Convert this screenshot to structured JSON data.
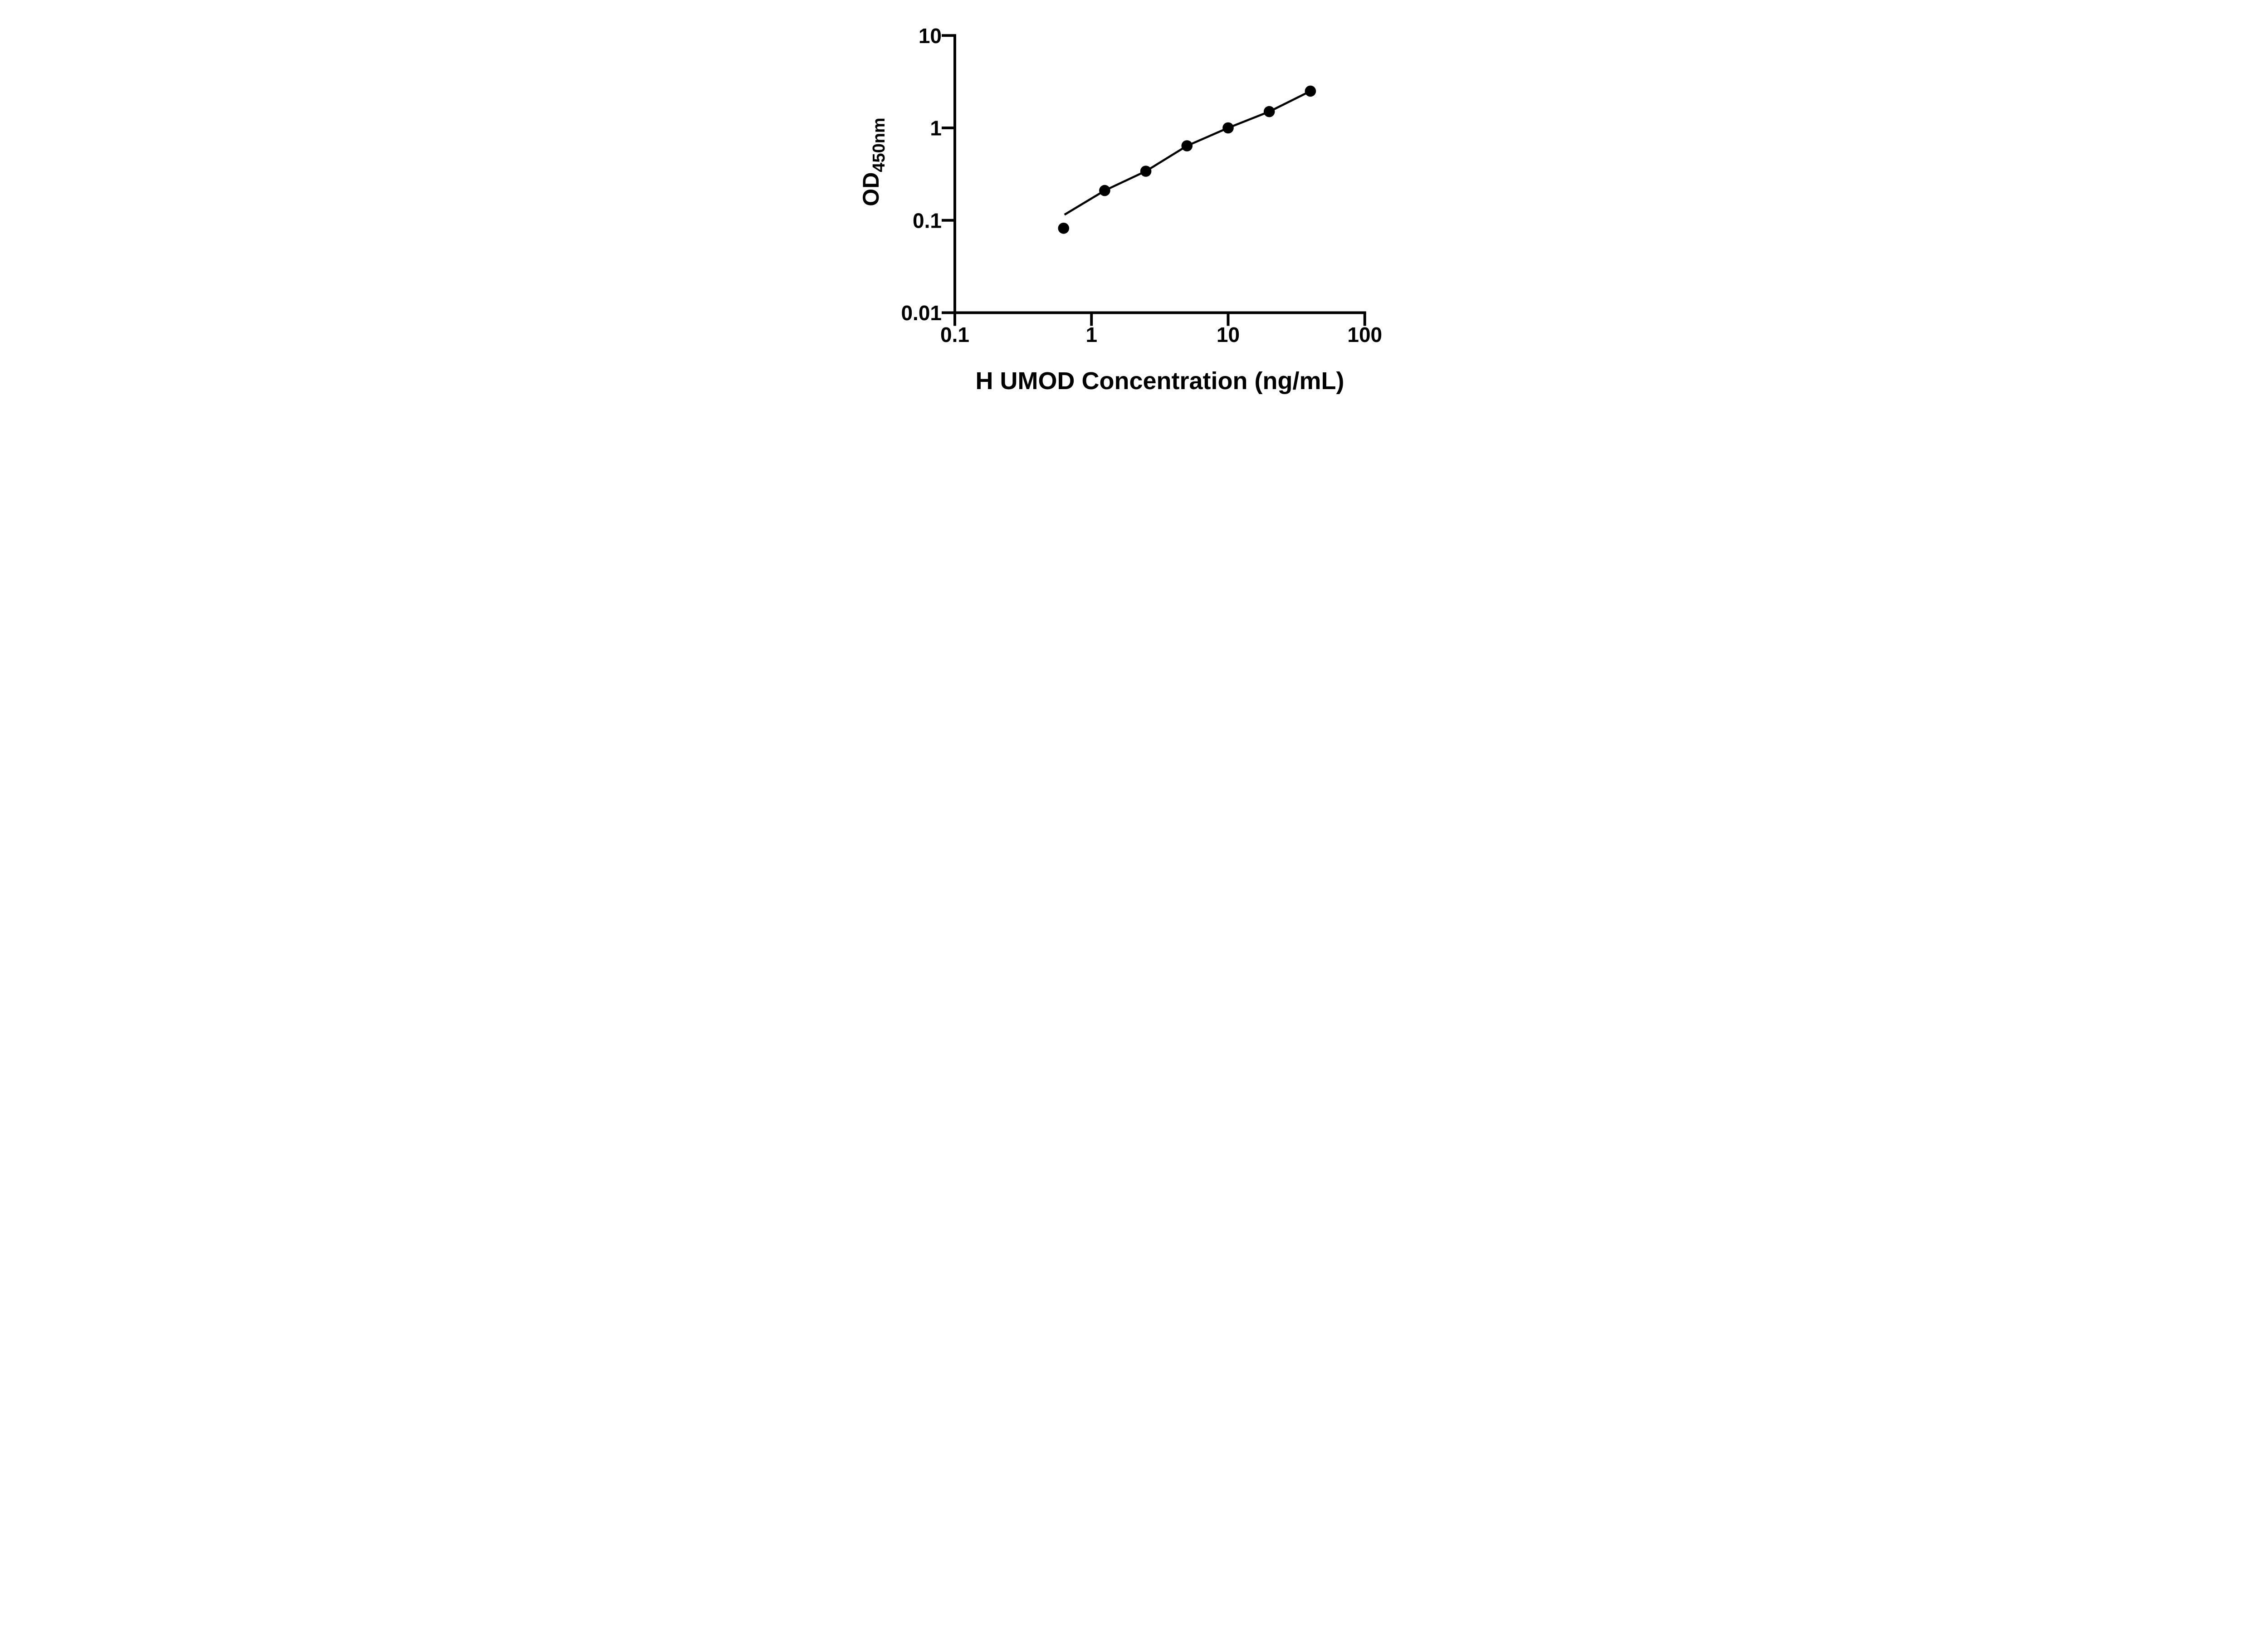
{
  "figure": {
    "background_color": "#ffffff",
    "ink_color": "#000000"
  },
  "chart_data": {
    "type": "scatter",
    "title": "",
    "xlabel": "H UMOD Concentration (ng/mL)",
    "ylabel_main": "OD",
    "ylabel_sub": "450nm",
    "x_scale": "log10",
    "y_scale": "log10",
    "xlim": [
      0.1,
      100
    ],
    "ylim": [
      0.01,
      10
    ],
    "grid": false,
    "legend": null,
    "x_ticks": [
      {
        "value": 0.1,
        "label": "0.1"
      },
      {
        "value": 1,
        "label": "1"
      },
      {
        "value": 10,
        "label": "10"
      },
      {
        "value": 100,
        "label": "100"
      }
    ],
    "y_ticks": [
      {
        "value": 0.01,
        "label": "0.01"
      },
      {
        "value": 0.1,
        "label": "0.1"
      },
      {
        "value": 1,
        "label": "1"
      },
      {
        "value": 10,
        "label": "10"
      }
    ],
    "series": [
      {
        "name": "standard-points",
        "type": "scatter",
        "marker": "filled-circle",
        "color": "#000000",
        "points": [
          {
            "x": 0.625,
            "y": 0.082
          },
          {
            "x": 1.25,
            "y": 0.21
          },
          {
            "x": 2.5,
            "y": 0.34
          },
          {
            "x": 5,
            "y": 0.64
          },
          {
            "x": 10,
            "y": 1.0
          },
          {
            "x": 20,
            "y": 1.5
          },
          {
            "x": 40,
            "y": 2.5
          }
        ]
      },
      {
        "name": "fitted-line",
        "type": "line",
        "color": "#000000",
        "points": [
          {
            "x": 0.635,
            "y": 0.115
          },
          {
            "x": 1.25,
            "y": 0.21
          },
          {
            "x": 2.5,
            "y": 0.34
          },
          {
            "x": 5,
            "y": 0.64
          },
          {
            "x": 10,
            "y": 1.0
          },
          {
            "x": 20,
            "y": 1.5
          },
          {
            "x": 40,
            "y": 2.5
          }
        ]
      }
    ]
  }
}
